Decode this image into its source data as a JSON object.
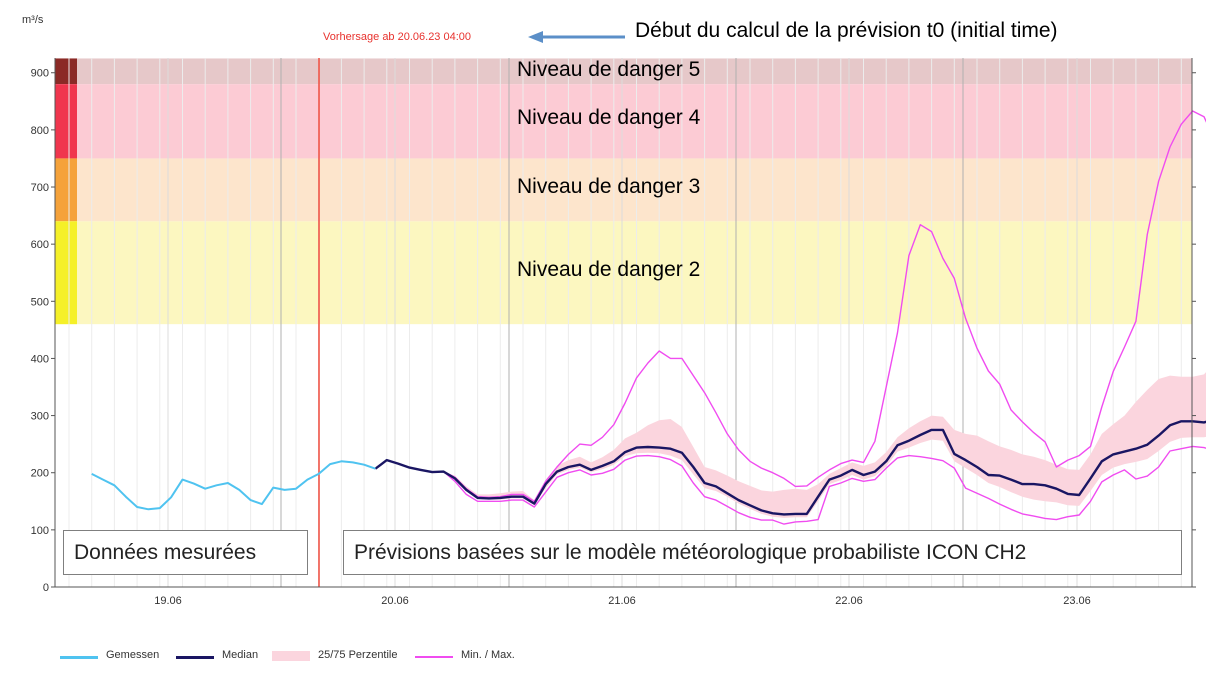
{
  "header": {
    "unit": "m³/s",
    "forecast_start_label": "Vorhersage ab 20.06.23 04:00",
    "t0_annotation": "Début du calcul de la prévision t0 (initial time)"
  },
  "danger_levels": [
    {
      "label": "Niveau de danger 5",
      "from": 880,
      "to": 925,
      "color": "#8b2a26",
      "band": "#e6c8c9"
    },
    {
      "label": "Niveau de danger 4",
      "from": 750,
      "to": 880,
      "color": "#f0364e",
      "band": "#fccbd4"
    },
    {
      "label": "Niveau de danger 3",
      "from": 640,
      "to": 750,
      "color": "#f5a23a",
      "band": "#fde5cc"
    },
    {
      "label": "Niveau de danger 2",
      "from": 460,
      "to": 640,
      "color": "#f5f028",
      "band": "#fcf7c0"
    }
  ],
  "boxes": {
    "measured": "Données mesurées",
    "forecast": "Prévisions basées sur le modèle météorologique probabiliste ICON CH2"
  },
  "legend": [
    {
      "label": "Gemessen",
      "kind": "line",
      "color": "#4fc3f0"
    },
    {
      "label": "Median",
      "kind": "line",
      "color": "#1a1663"
    },
    {
      "label": "25/75 Perzentile",
      "kind": "band",
      "color": "#fbd5de"
    },
    {
      "label": "Min. / Max.",
      "kind": "line",
      "color": "#f04cf0"
    }
  ],
  "chart_data": {
    "type": "line",
    "x_start": "2023-06-18 14:00",
    "x_step_hours": 2,
    "forecast_start": "2023-06-20 04:00",
    "ylim": [
      0,
      925
    ],
    "yticks": [
      0,
      100,
      200,
      300,
      400,
      500,
      600,
      700,
      800,
      900
    ],
    "xticks": [
      "19.06",
      "20.06",
      "21.06",
      "22.06",
      "23.06"
    ],
    "grid": true,
    "series": [
      {
        "name": "Gemessen",
        "x0": 2,
        "values": [
          198,
          188,
          178,
          158,
          140,
          136,
          138,
          157,
          188,
          181,
          172,
          178,
          182,
          170,
          152,
          145,
          174,
          170,
          172,
          188,
          198,
          215,
          220,
          218,
          214,
          207
        ]
      },
      {
        "name": "Median",
        "x0": 27,
        "values": [
          207,
          222,
          216,
          209,
          205,
          201,
          202,
          190,
          170,
          156,
          155,
          156,
          158,
          158,
          146,
          180,
          202,
          210,
          214,
          205,
          212,
          220,
          236,
          244,
          245,
          244,
          242,
          235,
          210,
          182,
          176,
          164,
          152,
          143,
          134,
          129,
          127,
          128,
          128,
          158,
          188,
          195,
          205,
          196,
          202,
          220,
          248,
          256,
          266,
          275,
          275,
          233,
          222,
          210,
          196,
          195,
          188,
          180,
          180,
          178,
          172,
          163,
          161,
          190,
          220,
          232,
          237,
          242,
          249,
          265,
          283,
          290,
          290,
          288,
          293,
          258,
          246,
          247,
          244,
          247,
          240,
          230,
          237,
          242,
          205,
          222,
          230,
          234,
          232,
          230,
          230,
          229,
          225
        ]
      },
      {
        "name": "25/75 Perzentile",
        "x0": 27,
        "low": [
          207,
          222,
          216,
          209,
          205,
          201,
          202,
          188,
          168,
          154,
          153,
          153,
          155,
          155,
          143,
          173,
          197,
          205,
          209,
          201,
          206,
          214,
          229,
          234,
          235,
          234,
          230,
          222,
          197,
          173,
          168,
          158,
          146,
          137,
          128,
          123,
          121,
          122,
          122,
          150,
          180,
          187,
          196,
          188,
          194,
          211,
          237,
          244,
          252,
          258,
          256,
          220,
          208,
          196,
          182,
          175,
          166,
          158,
          153,
          150,
          148,
          143,
          142,
          168,
          196,
          209,
          215,
          219,
          224,
          238,
          254,
          261,
          262,
          262,
          266,
          235,
          224,
          225,
          223,
          225,
          220,
          208,
          214,
          217,
          190,
          202,
          208,
          210,
          208,
          205,
          203,
          202,
          199
        ],
        "high": [
          207,
          222,
          216,
          209,
          205,
          201,
          202,
          195,
          176,
          162,
          162,
          164,
          167,
          168,
          152,
          188,
          212,
          222,
          228,
          218,
          227,
          240,
          260,
          270,
          283,
          292,
          294,
          280,
          245,
          210,
          204,
          195,
          185,
          177,
          169,
          167,
          170,
          172,
          170,
          180,
          198,
          208,
          218,
          212,
          218,
          236,
          262,
          278,
          290,
          300,
          298,
          275,
          268,
          265,
          255,
          246,
          240,
          232,
          228,
          222,
          214,
          206,
          205,
          232,
          268,
          285,
          300,
          324,
          345,
          364,
          370,
          368,
          368,
          372,
          395,
          378,
          366,
          354,
          345,
          330,
          332,
          318,
          318,
          300,
          295,
          305,
          316,
          312,
          305,
          292,
          280,
          270,
          258
        ]
      },
      {
        "name": "Min. / Max.",
        "x0": 27,
        "min": [
          207,
          222,
          216,
          209,
          205,
          201,
          202,
          185,
          162,
          150,
          150,
          150,
          152,
          152,
          140,
          166,
          192,
          200,
          205,
          196,
          199,
          206,
          222,
          229,
          230,
          228,
          223,
          212,
          182,
          158,
          152,
          141,
          130,
          122,
          117,
          117,
          110,
          114,
          115,
          118,
          176,
          182,
          190,
          185,
          188,
          208,
          226,
          230,
          228,
          225,
          221,
          208,
          173,
          164,
          155,
          145,
          136,
          128,
          124,
          120,
          118,
          123,
          126,
          150,
          184,
          196,
          205,
          189,
          194,
          210,
          238,
          242,
          246,
          244,
          238,
          212,
          178,
          170,
          157,
          147,
          139,
          132,
          128,
          135,
          150,
          152,
          145,
          126,
          158,
          178,
          180,
          185,
          172
        ]
      },
      {
        "name": "Min. / Max.",
        "x0": 27,
        "max": [
          207,
          222,
          216,
          209,
          205,
          201,
          202,
          192,
          172,
          158,
          157,
          158,
          162,
          162,
          150,
          185,
          210,
          232,
          250,
          248,
          262,
          284,
          322,
          366,
          392,
          413,
          400,
          400,
          370,
          340,
          305,
          268,
          240,
          220,
          208,
          200,
          190,
          176,
          177,
          192,
          205,
          216,
          222,
          218,
          255,
          350,
          445,
          580,
          634,
          622,
          575,
          540,
          470,
          418,
          378,
          355,
          310,
          289,
          270,
          254,
          210,
          222,
          230,
          246,
          315,
          377,
          420,
          465,
          617,
          710,
          770,
          810,
          833,
          823,
          780,
          725,
          673,
          640,
          610,
          583,
          556,
          526,
          470,
          473,
          463,
          455,
          430,
          400,
          388,
          376,
          362,
          348,
          338
        ]
      }
    ]
  }
}
